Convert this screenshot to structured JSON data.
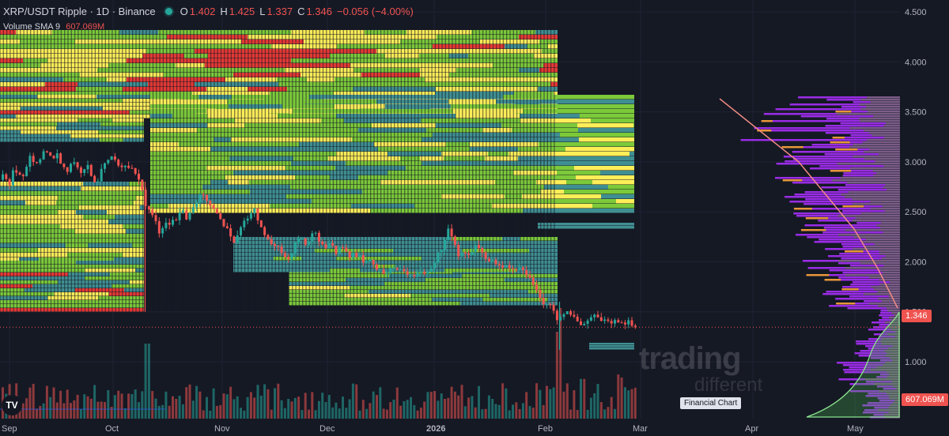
{
  "header": {
    "symbol": "XRP/USDT Ripple · 1D · Binance",
    "open_label": "O",
    "open": "1.402",
    "high_label": "H",
    "high": "1.425",
    "low_label": "L",
    "low": "1.337",
    "close_label": "C",
    "close": "1.346",
    "change": "−0.056 (−4.00%)"
  },
  "volume": {
    "label": "Volume SMA 9",
    "value": "607.069M"
  },
  "price_tag": "1.346",
  "volume_tag": "607.069M",
  "watermark": {
    "line1": "trading",
    "line2": "different"
  },
  "financial_chart_label": "Financial Chart",
  "logo": "TV",
  "colors": {
    "bg": "#151924",
    "up": "#26a69a",
    "down": "#ef5350",
    "heat_red": "#e53935",
    "heat_yellow": "#ffee58",
    "heat_green": "#7cc93a",
    "heat_teal": "#3f8f92",
    "profile_purple": "#9c27f0",
    "profile_orange": "#e8963a",
    "profile_pink": "#ce93d8"
  },
  "chart_data": {
    "type": "candlestick",
    "y_axis": {
      "ticks": [
        "4.500",
        "4.000",
        "3.500",
        "3.000",
        "2.500",
        "2.000",
        "1.500",
        "1.000"
      ],
      "range": [
        0.55,
        4.6
      ]
    },
    "x_axis": {
      "ticks": [
        "Sep",
        "Oct",
        "Nov",
        "Dec",
        "2026",
        "Feb",
        "Mar",
        "Apr",
        "May"
      ]
    },
    "last_price": 1.346,
    "ohlc_last": {
      "open": 1.402,
      "high": 1.425,
      "low": 1.337,
      "close": 1.346
    },
    "price_path": [
      [
        0,
        2.82
      ],
      [
        8,
        2.88
      ],
      [
        14,
        2.75
      ],
      [
        20,
        2.95
      ],
      [
        26,
        2.85
      ],
      [
        33,
        2.83
      ],
      [
        40,
        3.05
      ],
      [
        48,
        2.95
      ],
      [
        55,
        3.06
      ],
      [
        62,
        3.12
      ],
      [
        68,
        3.02
      ],
      [
        75,
        3.08
      ],
      [
        80,
        2.97
      ],
      [
        88,
        2.92
      ],
      [
        95,
        3.02
      ],
      [
        100,
        2.95
      ],
      [
        106,
        2.86
      ],
      [
        112,
        2.98
      ],
      [
        118,
        2.85
      ],
      [
        125,
        2.8
      ],
      [
        132,
        2.92
      ],
      [
        140,
        3.02
      ],
      [
        148,
        3.05
      ],
      [
        155,
        2.95
      ],
      [
        162,
        2.98
      ],
      [
        170,
        2.92
      ],
      [
        176,
        2.84
      ],
      [
        182,
        2.78
      ],
      [
        186,
        2.55
      ],
      [
        192,
        2.52
      ],
      [
        198,
        2.42
      ],
      [
        204,
        2.3
      ],
      [
        210,
        2.38
      ],
      [
        218,
        2.4
      ],
      [
        226,
        2.43
      ],
      [
        234,
        2.52
      ],
      [
        240,
        2.42
      ],
      [
        246,
        2.55
      ],
      [
        252,
        2.62
      ],
      [
        258,
        2.66
      ],
      [
        264,
        2.6
      ],
      [
        270,
        2.52
      ],
      [
        276,
        2.5
      ],
      [
        282,
        2.4
      ],
      [
        288,
        2.36
      ],
      [
        294,
        2.28
      ],
      [
        300,
        2.18
      ],
      [
        306,
        2.32
      ],
      [
        312,
        2.44
      ],
      [
        318,
        2.46
      ],
      [
        324,
        2.52
      ],
      [
        330,
        2.4
      ],
      [
        336,
        2.32
      ],
      [
        342,
        2.22
      ],
      [
        348,
        2.14
      ],
      [
        354,
        2.18
      ],
      [
        360,
        2.06
      ],
      [
        366,
        2.04
      ],
      [
        372,
        2.1
      ],
      [
        378,
        2.22
      ],
      [
        384,
        2.27
      ],
      [
        390,
        2.18
      ],
      [
        396,
        2.26
      ],
      [
        402,
        2.3
      ],
      [
        408,
        2.18
      ],
      [
        414,
        2.1
      ],
      [
        420,
        2.2
      ],
      [
        426,
        2.08
      ],
      [
        432,
        2.16
      ],
      [
        438,
        2.13
      ],
      [
        444,
        2.06
      ],
      [
        450,
        2.1
      ],
      [
        456,
        2.06
      ],
      [
        462,
        2.02
      ],
      [
        468,
        2.0
      ],
      [
        474,
        1.98
      ],
      [
        480,
        1.94
      ],
      [
        486,
        1.9
      ],
      [
        492,
        1.88
      ],
      [
        498,
        1.92
      ],
      [
        504,
        1.94
      ],
      [
        510,
        1.9
      ],
      [
        516,
        1.89
      ],
      [
        522,
        1.88
      ],
      [
        528,
        1.87
      ],
      [
        534,
        1.89
      ],
      [
        540,
        1.88
      ],
      [
        546,
        1.9
      ],
      [
        552,
        1.96
      ],
      [
        556,
        2.08
      ],
      [
        560,
        2.12
      ],
      [
        564,
        2.2
      ],
      [
        568,
        2.34
      ],
      [
        572,
        2.3
      ],
      [
        576,
        2.18
      ],
      [
        582,
        2.08
      ],
      [
        588,
        2.1
      ],
      [
        594,
        2.06
      ],
      [
        600,
        2.12
      ],
      [
        606,
        2.16
      ],
      [
        612,
        2.08
      ],
      [
        618,
        2.02
      ],
      [
        624,
        2.04
      ],
      [
        630,
        1.98
      ],
      [
        636,
        1.92
      ],
      [
        642,
        1.94
      ],
      [
        648,
        1.92
      ],
      [
        654,
        1.9
      ],
      [
        660,
        1.92
      ],
      [
        666,
        1.88
      ],
      [
        672,
        1.86
      ],
      [
        678,
        1.78
      ],
      [
        684,
        1.62
      ],
      [
        690,
        1.6
      ],
      [
        696,
        1.56
      ],
      [
        702,
        1.55
      ],
      [
        708,
        1.42
      ],
      [
        714,
        1.44
      ],
      [
        720,
        1.48
      ],
      [
        726,
        1.46
      ],
      [
        732,
        1.42
      ],
      [
        738,
        1.38
      ],
      [
        744,
        1.4
      ],
      [
        750,
        1.44
      ],
      [
        756,
        1.48
      ],
      [
        762,
        1.44
      ],
      [
        768,
        1.42
      ],
      [
        774,
        1.4
      ],
      [
        780,
        1.42
      ],
      [
        786,
        1.38
      ],
      [
        792,
        1.4
      ],
      [
        798,
        1.4
      ],
      [
        804,
        1.35
      ]
    ]
  }
}
